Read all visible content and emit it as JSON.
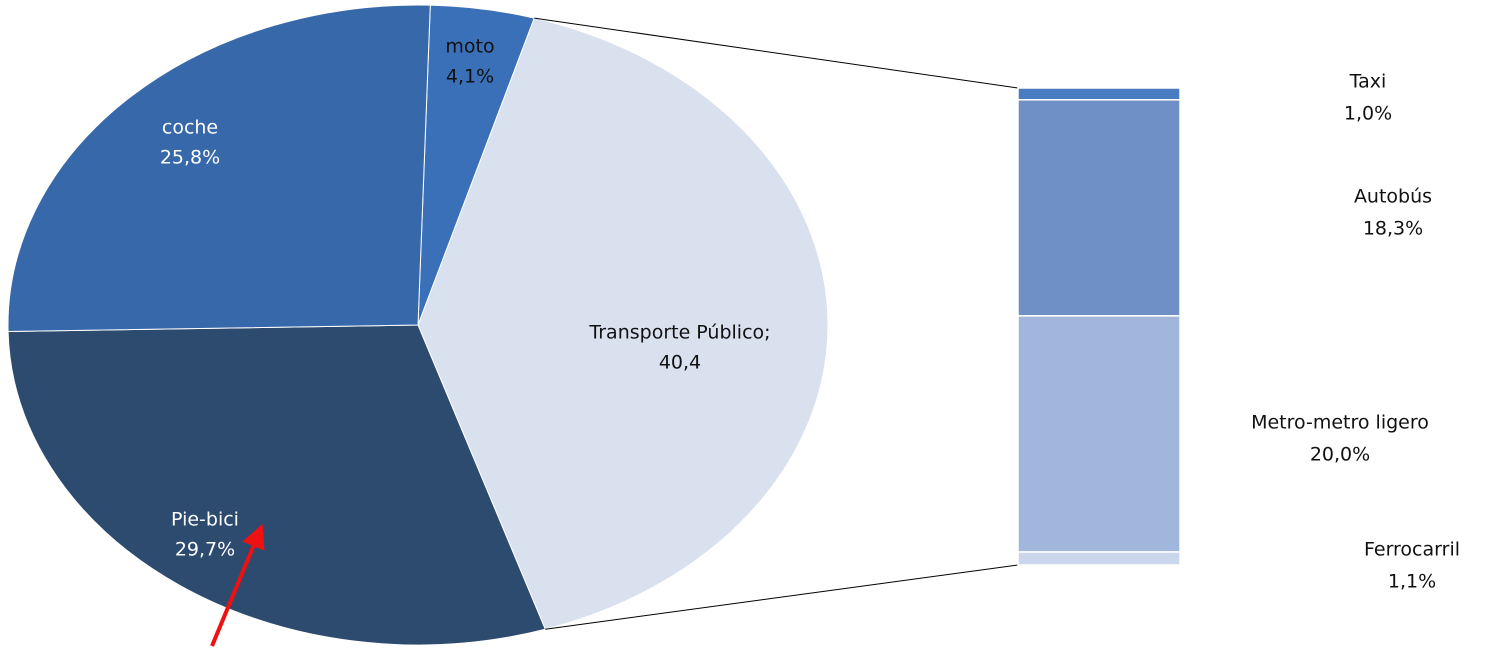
{
  "chart_data": {
    "type": "bar-of-pie",
    "categories": [
      "moto",
      "Transporte Público;",
      "Pie-bici",
      "coche"
    ],
    "values": [
      4.1,
      40.4,
      29.7,
      25.8
    ],
    "value_labels": [
      "4,1%",
      "40,4",
      "29,7%",
      "25,8%"
    ],
    "colors": [
      "#3a70b8",
      "#d9e0ee",
      "#2d4a6f",
      "#3668aa"
    ],
    "bar": {
      "categories": [
        "Taxi",
        "Autobús",
        "Metro-metro ligero",
        "Ferrocarril"
      ],
      "values": [
        1.0,
        18.3,
        20.0,
        1.1
      ],
      "value_labels": [
        "1,0%",
        "18,3%",
        "20,0%",
        "1,1%"
      ],
      "colors": [
        "#4a7cc2",
        "#6f90c6",
        "#a0b6dc",
        "#cad6eb"
      ]
    }
  }
}
